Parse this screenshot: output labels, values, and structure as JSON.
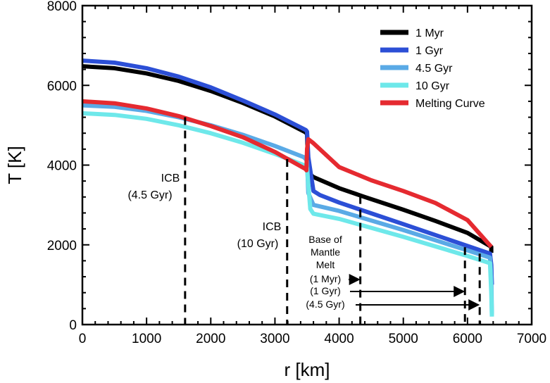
{
  "chart_data": {
    "type": "line",
    "title": "",
    "xlabel": "r [km]",
    "ylabel": "T [K]",
    "xlim": [
      0,
      7000
    ],
    "ylim": [
      0,
      8000
    ],
    "x_ticks": [
      0,
      1000,
      2000,
      3000,
      4000,
      5000,
      6000,
      7000
    ],
    "y_ticks": [
      0,
      2000,
      4000,
      6000,
      8000
    ],
    "x_tick_labels": [
      "0",
      "1000",
      "2000",
      "3000",
      "4000",
      "5000",
      "6000",
      "7000"
    ],
    "y_tick_labels": [
      "0",
      "2000",
      "4000",
      "6000",
      "8000"
    ],
    "legend_position": "top-right",
    "series": [
      {
        "name": "1 Myr",
        "color": "#000000",
        "x": [
          0,
          500,
          1000,
          1500,
          2000,
          2500,
          3000,
          3480,
          3500,
          3520,
          3600,
          4000,
          4400,
          5000,
          5500,
          6000,
          6370,
          6370
        ],
        "y": [
          6480,
          6430,
          6300,
          6110,
          5860,
          5560,
          5220,
          4820,
          4770,
          3800,
          3700,
          3420,
          3200,
          2880,
          2600,
          2300,
          1950,
          1800
        ]
      },
      {
        "name": "1 Gyr",
        "color": "#2c4fd6",
        "x": [
          0,
          500,
          1000,
          1500,
          2000,
          2500,
          3000,
          3480,
          3500,
          3520,
          3600,
          3700,
          4000,
          5000,
          6000,
          6350,
          6370,
          6380
        ],
        "y": [
          6620,
          6570,
          6430,
          6220,
          5950,
          5620,
          5270,
          4880,
          4840,
          4200,
          3350,
          3250,
          3060,
          2520,
          1970,
          1780,
          1500,
          1000
        ]
      },
      {
        "name": "4.5 Gyr",
        "color": "#5aaae6",
        "x": [
          0,
          500,
          1000,
          1500,
          2000,
          2500,
          3000,
          3450,
          3480,
          3500,
          3520,
          3600,
          4000,
          5000,
          6000,
          6350,
          6370,
          6380
        ],
        "y": [
          5500,
          5460,
          5360,
          5200,
          5000,
          4760,
          4480,
          4200,
          4150,
          4100,
          3300,
          3000,
          2850,
          2370,
          1860,
          1680,
          1200,
          250
        ]
      },
      {
        "name": "10 Gyr",
        "color": "#6ee8ea",
        "x": [
          0,
          500,
          1000,
          1500,
          2000,
          2500,
          3000,
          3450,
          3480,
          3500,
          3550,
          3600,
          4000,
          5000,
          6000,
          6350,
          6370,
          6380
        ],
        "y": [
          5300,
          5260,
          5160,
          5000,
          4800,
          4560,
          4280,
          4000,
          3960,
          3920,
          2900,
          2780,
          2650,
          2200,
          1720,
          1540,
          800,
          200
        ]
      },
      {
        "name": "Melting Curve",
        "color": "#e52a30",
        "x": [
          0,
          500,
          1000,
          1500,
          2000,
          2500,
          3000,
          3480,
          3490,
          3500,
          3520,
          3600,
          4000,
          4500,
          5000,
          5500,
          6000,
          6370
        ],
        "y": [
          5600,
          5550,
          5420,
          5230,
          4980,
          4700,
          4330,
          3900,
          3870,
          4400,
          4650,
          4550,
          3950,
          3620,
          3350,
          3050,
          2620,
          1950
        ]
      }
    ],
    "annotations": [
      {
        "lines": [
          "ICB",
          "(4.5 Gyr)"
        ],
        "x": 1600,
        "y": 4000,
        "text_at": 2880
      },
      {
        "lines": [
          "ICB",
          "(10 Gyr)"
        ],
        "x": 3190,
        "y": 4090,
        "text_at": 1950
      },
      {
        "lines": [
          "Base of",
          "Mantle",
          "Melt"
        ],
        "x": 0,
        "y": 0
      },
      {
        "label": "(1 Myr)",
        "x_at": 4330,
        "y_line": 1100
      },
      {
        "label": "(1 Gyr)",
        "x_at": 5960,
        "y_line": 750
      },
      {
        "label": "(4.5 Gyr)",
        "x_at": 6190,
        "y_line": 430
      }
    ],
    "markers": [
      {
        "name": "icb-4.5gyr",
        "x": 1600,
        "y_top": 5200,
        "y_bottom": 0
      },
      {
        "name": "icb-10gyr",
        "x": 3190,
        "y_top": 4150,
        "y_bottom": 0
      },
      {
        "name": "mantle-melt-1myr",
        "x": 4330,
        "y_top": 3220,
        "y_bottom": 0
      },
      {
        "name": "mantle-melt-1gyr",
        "x": 5960,
        "y_top": 1940,
        "y_bottom": 0
      },
      {
        "name": "mantle-melt-4.5gyr",
        "x": 6190,
        "y_top": 1780,
        "y_bottom": 0
      }
    ]
  },
  "labels": {
    "icb_45_line1": "ICB",
    "icb_45_line2": "(4.5 Gyr)",
    "icb_10_line1": "ICB",
    "icb_10_line2": "(10 Gyr)",
    "melt_line1": "Base of",
    "melt_line2": "Mantle",
    "melt_line3": "Melt",
    "melt_1myr": "(1 Myr)",
    "melt_1gyr": "(1 Gyr)",
    "melt_45gyr": "(4.5 Gyr)"
  }
}
